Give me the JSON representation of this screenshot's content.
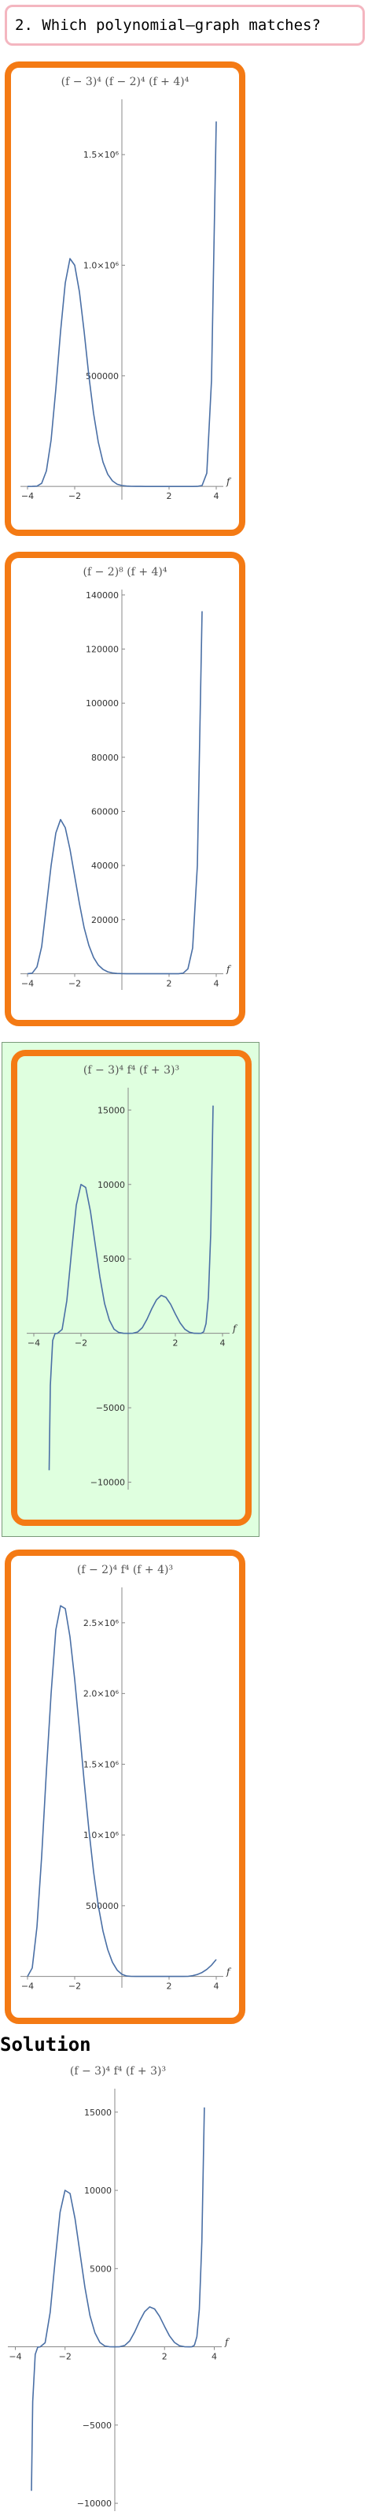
{
  "question": {
    "text": "2. Which polynomial‒graph matches?"
  },
  "colors": {
    "card_border": "#f47a14",
    "correct_bg": "#dfffdf",
    "curve": "#4a6fa5",
    "question_border": "#f4b6c0"
  },
  "options": [
    {
      "title": "(f − 3)⁴ (f − 2)⁴ (f + 4)⁴",
      "correct": false,
      "chart_data": {
        "type": "line",
        "title": "(f − 3)^4 (f − 2)^4 (f + 4)^4",
        "xlabel": "f",
        "xlim": [
          -4.3,
          4.3
        ],
        "ylim": [
          -60000,
          1750000
        ],
        "xticks": [
          -4,
          -2,
          2,
          4
        ],
        "xtick_labels": [
          "−4",
          "−2",
          "2",
          "4"
        ],
        "yticks": [
          500000,
          1000000,
          1500000
        ],
        "ytick_labels": [
          "500000",
          "1.0×10⁶",
          "1.5×10⁶"
        ],
        "x": [
          -4,
          -3.8,
          -3.6,
          -3.4,
          -3.2,
          -3,
          -2.8,
          -2.6,
          -2.4,
          -2.2,
          -2,
          -1.8,
          -1.6,
          -1.4,
          -1.2,
          -1,
          -0.8,
          -0.6,
          -0.4,
          -0.2,
          0,
          0.2,
          0.4,
          0.6,
          0.8,
          1,
          1.2,
          1.4,
          1.6,
          1.8,
          2,
          2.2,
          2.4,
          2.6,
          2.8,
          3,
          3.2,
          3.4,
          3.6,
          3.8,
          4
        ],
        "y": [
          0,
          60,
          1200,
          14000,
          70000,
          210000,
          440000,
          700000,
          920000,
          1030000,
          1000000,
          880000,
          700000,
          500000,
          330000,
          200000,
          110000,
          55000,
          25000,
          10000,
          4000,
          1500,
          500,
          150,
          40,
          8,
          1,
          0,
          0,
          0,
          0,
          0,
          0,
          0,
          5,
          0,
          100,
          4000,
          60000,
          480000,
          1650000
        ]
      }
    },
    {
      "title": "(f − 2)⁸ (f + 4)⁴",
      "correct": false,
      "chart_data": {
        "type": "line",
        "title": "(f − 2)^8 (f + 4)^4",
        "xlabel": "f",
        "xlim": [
          -4.3,
          4.3
        ],
        "ylim": [
          -6000,
          142000
        ],
        "xticks": [
          -4,
          -2,
          2,
          4
        ],
        "xtick_labels": [
          "−4",
          "−2",
          "2",
          "4"
        ],
        "yticks": [
          20000,
          40000,
          60000,
          80000,
          100000,
          120000,
          140000
        ],
        "ytick_labels": [
          "20000",
          "40000",
          "60000",
          "80000",
          "100000",
          "120000",
          "140000"
        ],
        "x": [
          -4,
          -3.8,
          -3.6,
          -3.4,
          -3.2,
          -3,
          -2.8,
          -2.6,
          -2.4,
          -2.2,
          -2,
          -1.8,
          -1.6,
          -1.4,
          -1.2,
          -1,
          -0.8,
          -0.6,
          -0.4,
          -0.2,
          0,
          0.2,
          0.4,
          0.6,
          0.8,
          1,
          1.2,
          1.4,
          1.6,
          1.8,
          2,
          2.2,
          2.4,
          2.6,
          2.8,
          3,
          3.2,
          3.4
        ],
        "y": [
          0,
          200,
          2500,
          10000,
          25000,
          40000,
          52000,
          57000,
          54000,
          46000,
          36000,
          26000,
          17000,
          10500,
          6000,
          3200,
          1600,
          700,
          300,
          100,
          40,
          10,
          2,
          0,
          0,
          0,
          0,
          0,
          0,
          0,
          0,
          0,
          10,
          200,
          1800,
          9500,
          40000,
          134000
        ]
      }
    },
    {
      "title": "(f − 3)⁴ f⁴ (f + 3)³",
      "correct": true,
      "chart_data": {
        "type": "line",
        "title": "(f − 3)^4 f^4 (f + 3)^3",
        "xlabel": "f",
        "xlim": [
          -4.3,
          4.3
        ],
        "ylim": [
          -10500,
          16500
        ],
        "xticks": [
          -4,
          -2,
          2,
          4
        ],
        "xtick_labels": [
          "−4",
          "−2",
          "2",
          "4"
        ],
        "yticks": [
          -10000,
          -5000,
          5000,
          10000,
          15000
        ],
        "ytick_labels": [
          "−10000",
          "−5000",
          "5000",
          "10000",
          "15000"
        ],
        "x": [
          -3.35,
          -3.3,
          -3.2,
          -3.1,
          -3,
          -2.8,
          -2.6,
          -2.4,
          -2.2,
          -2,
          -1.8,
          -1.6,
          -1.4,
          -1.2,
          -1,
          -0.8,
          -0.6,
          -0.4,
          -0.2,
          0,
          0.2,
          0.4,
          0.6,
          0.8,
          1,
          1.2,
          1.4,
          1.6,
          1.8,
          2,
          2.2,
          2.4,
          2.6,
          2.8,
          3,
          3.1,
          3.2,
          3.3,
          3.4,
          3.5,
          3.6
        ],
        "y": [
          -9200,
          -3500,
          -480,
          -20,
          0,
          260,
          2200,
          5500,
          8600,
          10000,
          9800,
          8200,
          6000,
          3800,
          2000,
          900,
          280,
          55,
          5,
          0,
          7,
          90,
          380,
          950,
          1650,
          2250,
          2550,
          2420,
          1950,
          1300,
          700,
          280,
          70,
          6,
          0,
          5,
          100,
          650,
          2400,
          6700,
          15300
        ]
      }
    },
    {
      "title": "(f − 2)⁴ f⁴ (f + 4)³",
      "correct": false,
      "chart_data": {
        "type": "line",
        "title": "(f − 2)^4 f^4 (f + 4)^3",
        "xlabel": "f",
        "xlim": [
          -4.3,
          4.3
        ],
        "ylim": [
          -80000,
          2750000
        ],
        "xticks": [
          -4,
          -2,
          2,
          4
        ],
        "xtick_labels": [
          "−4",
          "−2",
          "2",
          "4"
        ],
        "yticks": [
          500000,
          1000000,
          1500000,
          2000000,
          2500000
        ],
        "ytick_labels": [
          "500000",
          "1.0×10⁶",
          "1.5×10⁶",
          "2.0×10⁶",
          "2.5×10⁶"
        ],
        "x": [
          -4,
          -3.8,
          -3.6,
          -3.4,
          -3.2,
          -3,
          -2.8,
          -2.6,
          -2.4,
          -2.2,
          -2,
          -1.8,
          -1.6,
          -1.4,
          -1.2,
          -1,
          -0.8,
          -0.6,
          -0.4,
          -0.2,
          0,
          0.2,
          0.4,
          0.6,
          0.8,
          1,
          1.2,
          1.4,
          1.6,
          1.8,
          2,
          2.2,
          2.4,
          2.6,
          2.8,
          3,
          3.2,
          3.4,
          3.6,
          3.8,
          4
        ],
        "y": [
          0,
          60000,
          350000,
          850000,
          1450000,
          2000000,
          2450000,
          2620000,
          2600000,
          2400000,
          2100000,
          1750000,
          1380000,
          1040000,
          740000,
          500000,
          320000,
          190000,
          100000,
          45000,
          15000,
          3000,
          500,
          80,
          10,
          2,
          0,
          0,
          0,
          0,
          0,
          0,
          0,
          0,
          1000,
          5000,
          14000,
          28000,
          50000,
          80000,
          120000
        ]
      }
    }
  ],
  "solution": {
    "heading": "Solution",
    "title": "(f − 3)⁴ f⁴ (f + 3)³",
    "chart_data": {
      "type": "line",
      "title": "(f − 3)^4 f^4 (f + 3)^3",
      "xlabel": "f",
      "xlim": [
        -4.3,
        4.3
      ],
      "ylim": [
        -10500,
        16500
      ],
      "xticks": [
        -4,
        -2,
        2,
        4
      ],
      "xtick_labels": [
        "−4",
        "−2",
        "2",
        "4"
      ],
      "yticks": [
        -10000,
        -5000,
        5000,
        10000,
        15000
      ],
      "ytick_labels": [
        "−10000",
        "−5000",
        "5000",
        "10000",
        "15000"
      ],
      "x": [
        -3.35,
        -3.3,
        -3.2,
        -3.1,
        -3,
        -2.8,
        -2.6,
        -2.4,
        -2.2,
        -2,
        -1.8,
        -1.6,
        -1.4,
        -1.2,
        -1,
        -0.8,
        -0.6,
        -0.4,
        -0.2,
        0,
        0.2,
        0.4,
        0.6,
        0.8,
        1,
        1.2,
        1.4,
        1.6,
        1.8,
        2,
        2.2,
        2.4,
        2.6,
        2.8,
        3,
        3.1,
        3.2,
        3.3,
        3.4,
        3.5,
        3.6
      ],
      "y": [
        -9200,
        -3500,
        -480,
        -20,
        0,
        260,
        2200,
        5500,
        8600,
        10000,
        9800,
        8200,
        6000,
        3800,
        2000,
        900,
        280,
        55,
        5,
        0,
        7,
        90,
        380,
        950,
        1650,
        2250,
        2550,
        2420,
        1950,
        1300,
        700,
        280,
        70,
        6,
        0,
        5,
        100,
        650,
        2400,
        6700,
        15300
      ]
    }
  }
}
